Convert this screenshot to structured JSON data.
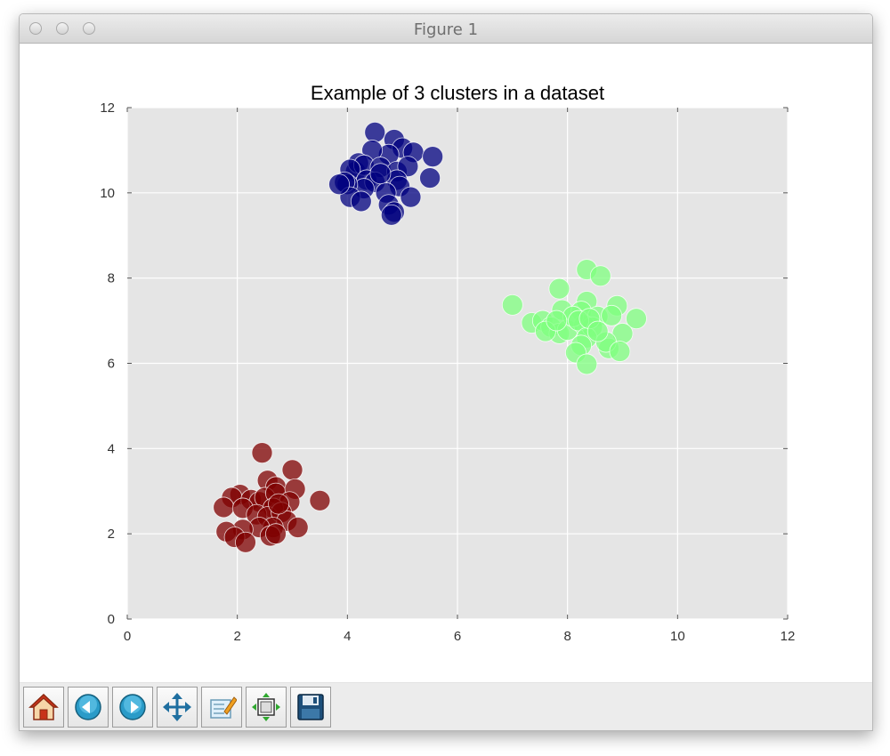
{
  "window": {
    "title": "Figure 1"
  },
  "toolbar": {
    "buttons": [
      {
        "name": "home-button",
        "icon": "home-icon"
      },
      {
        "name": "back-button",
        "icon": "back-arrow-icon"
      },
      {
        "name": "forward-button",
        "icon": "forward-arrow-icon"
      },
      {
        "name": "pan-button",
        "icon": "move-arrows-icon"
      },
      {
        "name": "zoom-button",
        "icon": "zoom-rect-icon"
      },
      {
        "name": "configure-subplots-button",
        "icon": "subplots-icon"
      },
      {
        "name": "save-button",
        "icon": "floppy-disk-icon"
      }
    ]
  },
  "chart_data": {
    "type": "scatter",
    "title": "Example of 3 clusters in a dataset",
    "xlabel": "",
    "ylabel": "",
    "xlim": [
      0,
      12
    ],
    "ylim": [
      0,
      12
    ],
    "xticks": [
      0,
      2,
      4,
      6,
      8,
      10,
      12
    ],
    "yticks": [
      0,
      2,
      4,
      6,
      8,
      10,
      12
    ],
    "grid": true,
    "background": "#e5e5e5",
    "series": [
      {
        "color": "#00007f",
        "points": [
          [
            4.15,
            10.5
          ],
          [
            4.5,
            11.42
          ],
          [
            4.85,
            11.25
          ],
          [
            5.0,
            11.05
          ],
          [
            5.2,
            10.95
          ],
          [
            4.75,
            10.9
          ],
          [
            4.45,
            11.0
          ],
          [
            4.2,
            10.7
          ],
          [
            4.3,
            10.65
          ],
          [
            4.6,
            10.6
          ],
          [
            4.9,
            10.5
          ],
          [
            5.1,
            10.62
          ],
          [
            5.55,
            10.85
          ],
          [
            5.5,
            10.35
          ],
          [
            4.05,
            10.55
          ],
          [
            4.35,
            10.3
          ],
          [
            4.5,
            10.25
          ],
          [
            4.9,
            10.3
          ],
          [
            4.95,
            10.15
          ],
          [
            4.7,
            10.0
          ],
          [
            4.3,
            10.1
          ],
          [
            4.0,
            10.2
          ],
          [
            3.95,
            10.25
          ],
          [
            4.05,
            9.9
          ],
          [
            4.25,
            9.8
          ],
          [
            5.15,
            9.9
          ],
          [
            4.75,
            9.72
          ],
          [
            4.85,
            9.55
          ],
          [
            4.8,
            9.48
          ],
          [
            3.85,
            10.2
          ],
          [
            4.6,
            10.45
          ]
        ]
      },
      {
        "color": "#7fff7f",
        "points": [
          [
            8.35,
            8.2
          ],
          [
            8.6,
            8.05
          ],
          [
            7.85,
            7.75
          ],
          [
            7.0,
            7.37
          ],
          [
            8.35,
            7.45
          ],
          [
            7.9,
            7.25
          ],
          [
            8.25,
            7.22
          ],
          [
            8.55,
            7.1
          ],
          [
            8.9,
            7.35
          ],
          [
            8.8,
            7.12
          ],
          [
            9.25,
            7.05
          ],
          [
            7.35,
            6.95
          ],
          [
            7.55,
            7.0
          ],
          [
            7.7,
            6.85
          ],
          [
            7.85,
            6.7
          ],
          [
            8.0,
            6.78
          ],
          [
            8.3,
            6.9
          ],
          [
            8.45,
            6.85
          ],
          [
            8.1,
            7.1
          ],
          [
            8.2,
            7.0
          ],
          [
            7.6,
            6.75
          ],
          [
            8.35,
            6.6
          ],
          [
            8.25,
            6.42
          ],
          [
            8.75,
            6.35
          ],
          [
            9.0,
            6.7
          ],
          [
            8.15,
            6.25
          ],
          [
            8.35,
            5.98
          ],
          [
            8.7,
            6.5
          ],
          [
            8.95,
            6.28
          ],
          [
            8.4,
            7.05
          ],
          [
            7.8,
            7.0
          ],
          [
            8.55,
            6.75
          ]
        ]
      },
      {
        "color": "#7f0000",
        "points": [
          [
            2.45,
            3.9
          ],
          [
            3.0,
            3.5
          ],
          [
            2.55,
            3.25
          ],
          [
            2.7,
            3.1
          ],
          [
            2.05,
            2.92
          ],
          [
            1.9,
            2.85
          ],
          [
            2.25,
            2.8
          ],
          [
            2.4,
            2.75
          ],
          [
            2.5,
            2.85
          ],
          [
            2.7,
            2.95
          ],
          [
            3.05,
            3.05
          ],
          [
            2.95,
            2.75
          ],
          [
            3.5,
            2.78
          ],
          [
            2.65,
            2.6
          ],
          [
            1.75,
            2.62
          ],
          [
            2.1,
            2.6
          ],
          [
            2.35,
            2.45
          ],
          [
            2.55,
            2.4
          ],
          [
            2.8,
            2.5
          ],
          [
            2.9,
            2.3
          ],
          [
            2.65,
            2.15
          ],
          [
            2.4,
            2.15
          ],
          [
            2.1,
            2.1
          ],
          [
            1.8,
            2.05
          ],
          [
            1.95,
            1.92
          ],
          [
            2.15,
            1.8
          ],
          [
            2.6,
            1.95
          ],
          [
            2.7,
            2.0
          ],
          [
            3.1,
            2.15
          ],
          [
            2.75,
            2.7
          ]
        ]
      }
    ]
  }
}
